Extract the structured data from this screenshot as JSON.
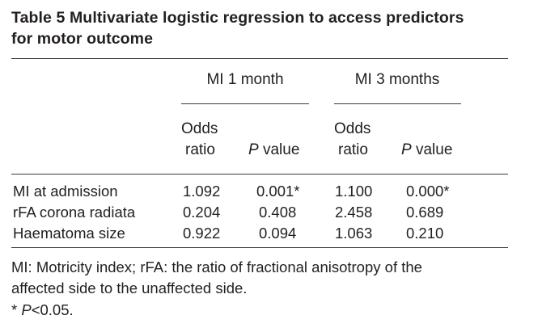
{
  "table": {
    "title_line1": "Table 5   Multivariate logistic regression to access predictors",
    "title_line2": "for motor outcome",
    "groups": [
      "MI 1 month",
      "MI 3 months"
    ],
    "subheaders": {
      "odds": "Odds",
      "ratio": "ratio",
      "p_italic": "P",
      "p_rest": " value"
    },
    "rows": [
      {
        "label": "MI at admission",
        "cells": [
          "1.092",
          "0.001*",
          "1.100",
          "0.000*"
        ]
      },
      {
        "label": "rFA corona radiata",
        "cells": [
          "0.204",
          "0.408",
          "2.458",
          "0.689"
        ]
      },
      {
        "label": "Haematoma size",
        "cells": [
          "0.922",
          "0.094",
          "1.063",
          "0.210"
        ]
      }
    ],
    "footnote_line1": "MI: Motricity index; rFA: the ratio of fractional anisotropy of the",
    "footnote_line2": "affected side to the unaffected side.",
    "footnote_star": "* ",
    "footnote_p": "P",
    "footnote_rest": "<0.05."
  }
}
